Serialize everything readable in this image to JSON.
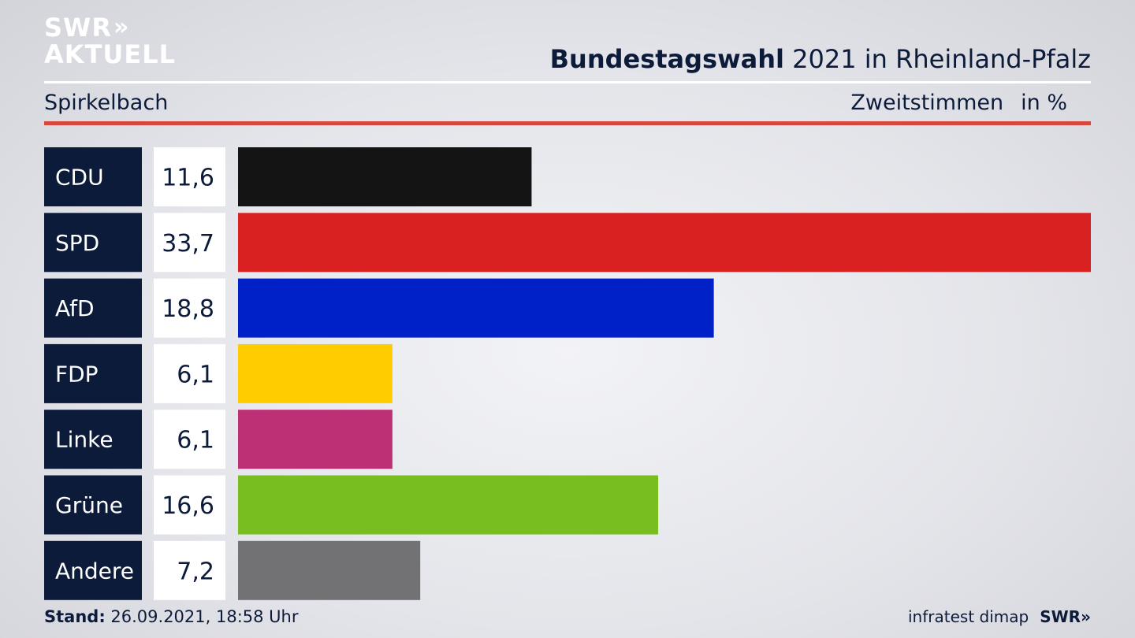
{
  "logo": {
    "line1": "SWR",
    "chevrons": "»",
    "line2": "AKTUELL"
  },
  "header": {
    "title_bold": "Bundestagswahl",
    "title_rest": " 2021 in Rheinland-Pfalz",
    "region": "Spirkelbach",
    "vote_type": "Zweitstimmen",
    "unit": "in %"
  },
  "footer": {
    "stand_label": "Stand:",
    "stand_value": " 26.09.2021, 18:58 Uhr",
    "source": "infratest dimap",
    "brand": "SWR»"
  },
  "chart_data": {
    "type": "bar",
    "orientation": "horizontal",
    "categories": [
      "CDU",
      "SPD",
      "AfD",
      "FDP",
      "Linke",
      "Grüne",
      "Andere"
    ],
    "values": [
      11.6,
      33.7,
      18.8,
      6.1,
      6.1,
      16.6,
      7.2
    ],
    "value_labels": [
      "11,6",
      "33,7",
      "18,8",
      "6,1",
      "6,1",
      "16,6",
      "7,2"
    ],
    "colors": [
      "#141414",
      "#d92121",
      "#0021c8",
      "#ffcc00",
      "#be3075",
      "#78be1e",
      "#727274"
    ],
    "xlim": [
      0,
      33.7
    ],
    "grid": false,
    "legend": "none"
  }
}
